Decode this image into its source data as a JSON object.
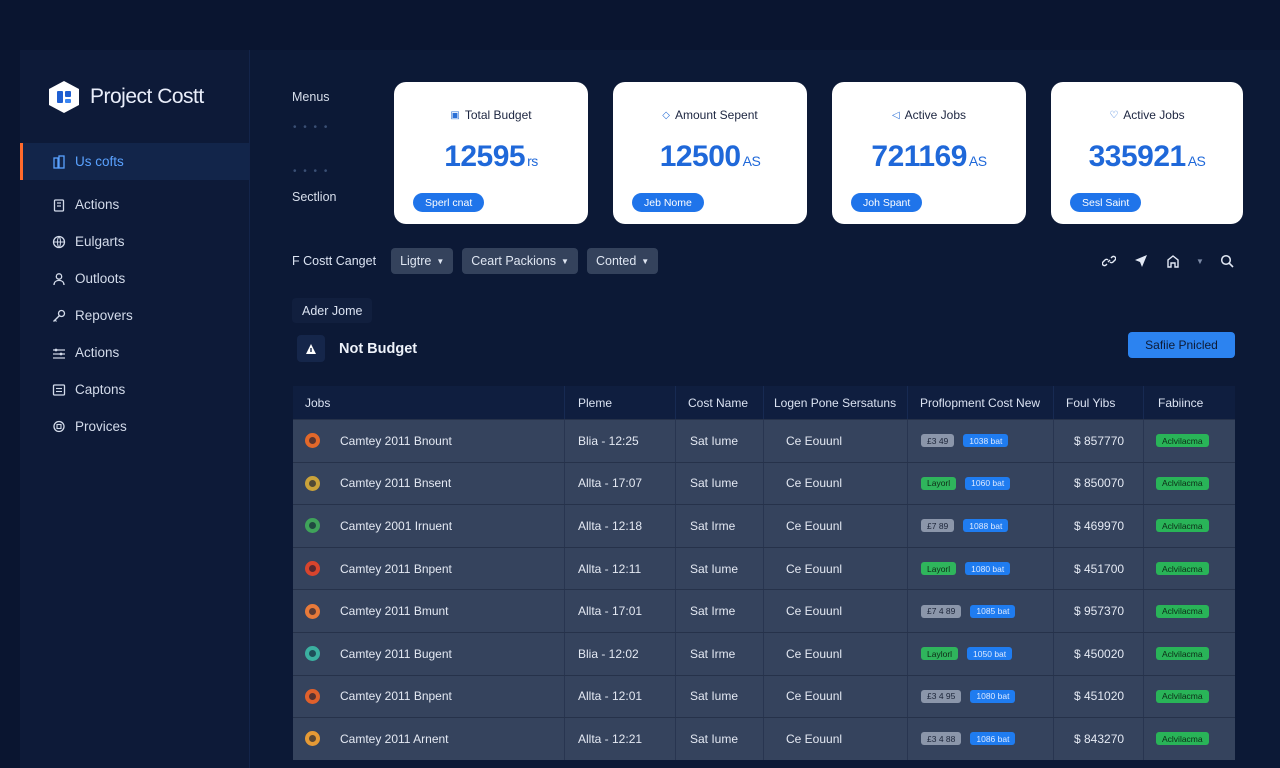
{
  "app": {
    "title": "Project Costt"
  },
  "sidebar": {
    "items": [
      {
        "label": "Us cofts",
        "icon": "building-icon",
        "active": true
      },
      {
        "label": "Actions",
        "icon": "clipboard-icon",
        "active": false
      },
      {
        "label": "Eulgarts",
        "icon": "globe-icon",
        "active": false
      },
      {
        "label": "Outloots",
        "icon": "user-icon",
        "active": false
      },
      {
        "label": "Repovers",
        "icon": "key-icon",
        "active": false
      },
      {
        "label": "Actions",
        "icon": "sliders-icon",
        "active": false
      },
      {
        "label": "Captons",
        "icon": "document-icon",
        "active": false
      },
      {
        "label": "Provices",
        "icon": "badge-icon",
        "active": false
      }
    ]
  },
  "side_labels": {
    "menus": "Menus",
    "section": "Sectlion"
  },
  "cards": [
    {
      "title": "Total Budget",
      "value": "12595",
      "unit": "rs",
      "pill": "Sperl cnat"
    },
    {
      "title": "Amount Sepent",
      "value": "12500",
      "unit": "AS",
      "pill": "Jeb Nome"
    },
    {
      "title": "Active Jobs",
      "value": "721169",
      "unit": "AS",
      "pill": "Joh Spant"
    },
    {
      "title": "Active Jobs",
      "value": "335921",
      "unit": "AS",
      "pill": "Sesl Saint"
    }
  ],
  "filters": {
    "label": "F Costt Canget",
    "dropdowns": [
      "Ligtre",
      "Ceart Packions",
      "Conted"
    ]
  },
  "chip": {
    "label": "Ader Jome"
  },
  "section": {
    "title": "Not Budget",
    "button": "Safiie Pnicled"
  },
  "table": {
    "headers": [
      "Jobs",
      "Pleme",
      "Cost Name",
      "Logen Pone Sersatuns",
      "Proflopment Cost New",
      "Foul Yibs",
      "Fabiince"
    ],
    "rows": [
      {
        "job": "Camtey 2011 Bnount",
        "pleme": "Blia - 12:25",
        "cost_name": "Sat Iume",
        "logen": "Ce Eouunl",
        "tag1": "£3 49",
        "tag1_type": "grey",
        "tag2": "1038 bat",
        "total": "$ 857770",
        "status": "Aclvilacma",
        "avatar": "#e2682a"
      },
      {
        "job": "Camtey 2011 Bnsent",
        "pleme": "Allta - 17:07",
        "cost_name": "Sat Iume",
        "logen": "Ce Eouunl",
        "tag1": "Layorl",
        "tag1_type": "green",
        "tag2": "1060 bat",
        "total": "$ 850070",
        "status": "Aclvilacma",
        "avatar": "#c9a23a"
      },
      {
        "job": "Camtey 2001 Irnuent",
        "pleme": "Allta - 12:18",
        "cost_name": "Sat Irme",
        "logen": "Ce Eouunl",
        "tag1": "£7 89",
        "tag1_type": "grey",
        "tag2": "1088 bat",
        "total": "$ 469970",
        "status": "Aclvilacma",
        "avatar": "#3fa35a"
      },
      {
        "job": "Camtey 2011 Bnpent",
        "pleme": "Allta - 12:11",
        "cost_name": "Sat Iume",
        "logen": "Ce Eouunl",
        "tag1": "Layorl",
        "tag1_type": "green",
        "tag2": "1080 bat",
        "total": "$ 451700",
        "status": "Aclvilacma",
        "avatar": "#d8442d"
      },
      {
        "job": "Camtey 2011 Bmunt",
        "pleme": "Allta - 17:01",
        "cost_name": "Sat Irme",
        "logen": "Ce Eouunl",
        "tag1": "£7 4 89",
        "tag1_type": "grey",
        "tag2": "1085 bat",
        "total": "$ 957370",
        "status": "Aclvilacma",
        "avatar": "#e77a3a"
      },
      {
        "job": "Camtey 2011 Bugent",
        "pleme": "Blia - 12:02",
        "cost_name": "Sat Irme",
        "logen": "Ce Eouunl",
        "tag1": "Laylorl",
        "tag1_type": "green",
        "tag2": "1050 bat",
        "total": "$ 450020",
        "status": "Aclvilacma",
        "avatar": "#3bb0a0"
      },
      {
        "job": "Camtey 2011 Bnpent",
        "pleme": "Allta - 12:01",
        "cost_name": "Sat Iume",
        "logen": "Ce Eouunl",
        "tag1": "£3 4 95",
        "tag1_type": "grey",
        "tag2": "1080 bat",
        "total": "$ 451020",
        "status": "Aclvilacma",
        "avatar": "#e0602b"
      },
      {
        "job": "Camtey 2011 Arnent",
        "pleme": "Allta - 12:21",
        "cost_name": "Sat Iume",
        "logen": "Ce Eouunl",
        "tag1": "£3 4 88",
        "tag1_type": "grey",
        "tag2": "1086 bat",
        "total": "$ 843270",
        "status": "Aclvilacma",
        "avatar": "#e59a35"
      }
    ]
  }
}
